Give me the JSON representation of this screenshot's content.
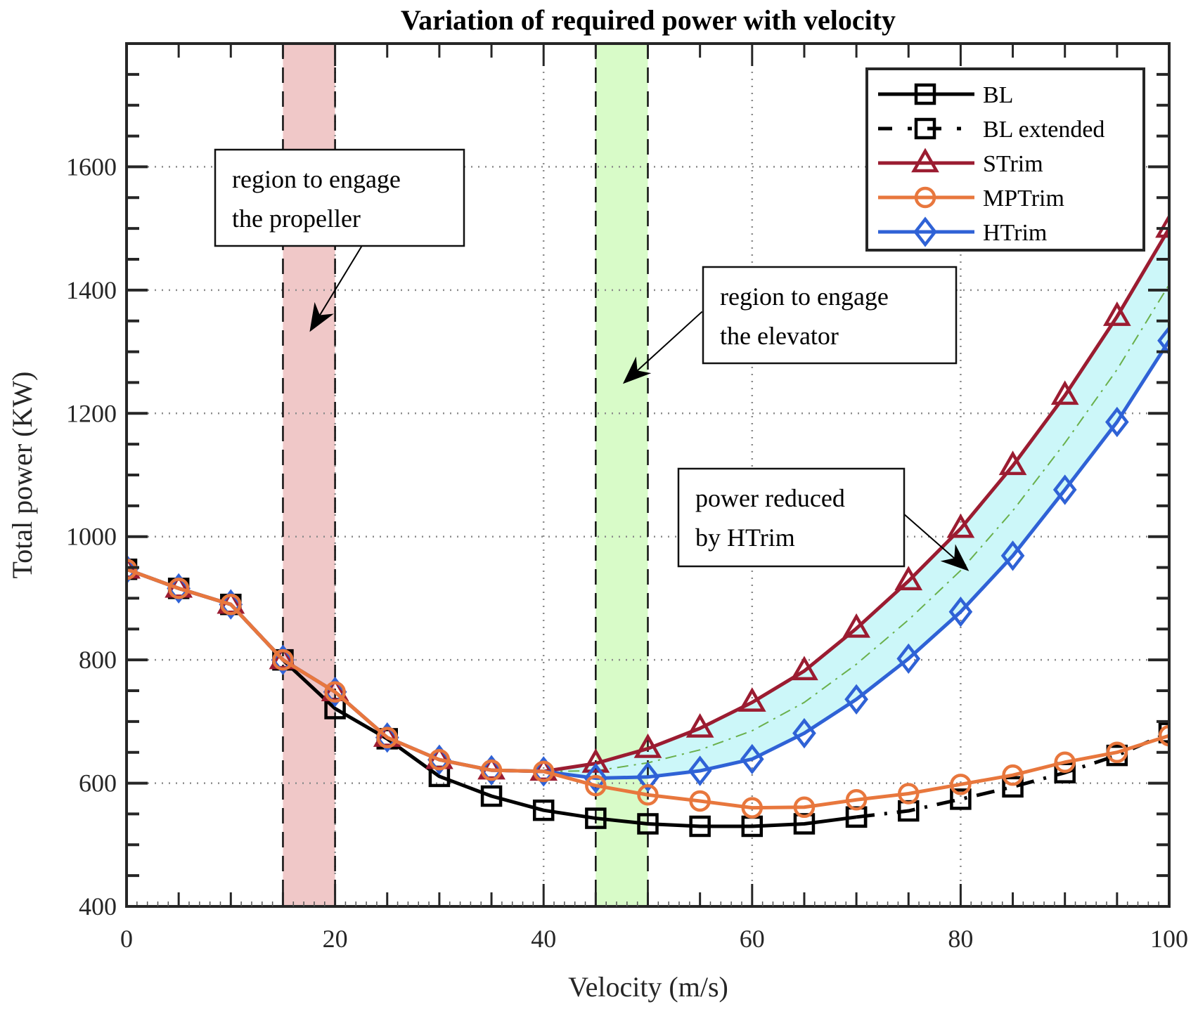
{
  "chart_data": {
    "type": "line",
    "title": "Variation of required power with velocity",
    "xlabel": "Velocity (m/s)",
    "ylabel": "Total power (KW)",
    "xlim": [
      0,
      100
    ],
    "ylim": [
      400,
      1800
    ],
    "x_ticks": [
      0,
      20,
      40,
      60,
      80,
      100
    ],
    "x_tick_labels": [
      "0",
      "20",
      "40",
      "60",
      "80",
      "100"
    ],
    "y_ticks": [
      400,
      600,
      800,
      1000,
      1200,
      1400,
      1600
    ],
    "y_tick_labels": [
      "400",
      "600",
      "800",
      "1000",
      "1200",
      "1400",
      "1600"
    ],
    "x_minor_step": 5,
    "y_minor_step": 50,
    "grid": true,
    "legend_position": "top-right",
    "series": [
      {
        "name": "BL",
        "color": "#000000",
        "marker": "square",
        "line_style": "solid",
        "x": [
          0,
          5,
          10,
          15,
          20,
          25,
          30,
          35,
          40,
          45,
          50,
          55,
          60,
          65,
          70
        ],
        "values": [
          947,
          916,
          890,
          800,
          721,
          672,
          611,
          579,
          556,
          543,
          534,
          530,
          530,
          534,
          545
        ]
      },
      {
        "name": "BL extended",
        "color": "#000000",
        "marker": "square",
        "line_style": "dash-dot",
        "x": [
          70,
          75,
          80,
          85,
          90,
          95,
          100
        ],
        "values": [
          545,
          555,
          574,
          594,
          617,
          645,
          682
        ]
      },
      {
        "name": "STrim",
        "color": "#9b1c31",
        "marker": "triangle",
        "line_style": "solid",
        "x": [
          0,
          5,
          10,
          15,
          20,
          25,
          30,
          35,
          40,
          45,
          50,
          55,
          60,
          65,
          70,
          75,
          80,
          85,
          90,
          95,
          100
        ],
        "values": [
          947,
          916,
          890,
          800,
          748,
          674,
          638,
          621,
          619,
          632,
          656,
          689,
          731,
          782,
          851,
          928,
          1013,
          1115,
          1229,
          1357,
          1500
        ]
      },
      {
        "name": "MPTrim",
        "color": "#e8773d",
        "marker": "circle",
        "line_style": "solid",
        "x": [
          0,
          5,
          10,
          15,
          20,
          25,
          30,
          35,
          40,
          45,
          50,
          55,
          60,
          65,
          70,
          75,
          80,
          85,
          90,
          95,
          100
        ],
        "values": [
          947,
          916,
          890,
          800,
          748,
          674,
          638,
          621,
          619,
          596,
          581,
          571,
          560,
          561,
          573,
          583,
          598,
          613,
          634,
          650,
          677
        ]
      },
      {
        "name": "HTrim",
        "color": "#2f62d6",
        "marker": "diamond",
        "line_style": "solid",
        "x": [
          0,
          5,
          10,
          15,
          20,
          25,
          30,
          35,
          40,
          45,
          50,
          55,
          60,
          65,
          70,
          75,
          80,
          85,
          90,
          95,
          100
        ],
        "values": [
          947,
          916,
          890,
          800,
          748,
          674,
          638,
          621,
          619,
          608,
          610,
          620,
          639,
          681,
          736,
          802,
          878,
          969,
          1076,
          1186,
          1318
        ]
      }
    ],
    "reference_line": {
      "name": "mean of STrim and HTrim",
      "color": "#6ab04c",
      "line_style": "dash-dot",
      "x": [
        40,
        45,
        50,
        55,
        60,
        65,
        70,
        75,
        80,
        85,
        90,
        95,
        100
      ],
      "values": [
        619,
        620,
        633,
        654,
        685,
        731,
        793,
        865,
        945,
        1042,
        1152,
        1271,
        1409
      ]
    },
    "fill_between": {
      "upper": "STrim",
      "lower": "HTrim",
      "x_from": 40,
      "x_to": 100,
      "color": "#ccf7f9"
    },
    "shaded_regions": [
      {
        "name": "propeller-region",
        "x_from": 15,
        "x_to": 20,
        "color": "#f0c8c8"
      },
      {
        "name": "elevator-region",
        "x_from": 45,
        "x_to": 50,
        "color": "#d8fbc8"
      }
    ],
    "annotations": [
      {
        "name": "propeller-annotation",
        "lines": [
          "region to engage",
          "the propeller"
        ],
        "arrow_to": [
          17.7,
          1336
        ],
        "arrow_from": [
          23.3,
          1492
        ]
      },
      {
        "name": "elevator-annotation",
        "lines": [
          "region to engage",
          "the elevator"
        ],
        "arrow_to": [
          47.8,
          1251
        ],
        "arrow_from": [
          55.2,
          1365
        ]
      },
      {
        "name": "htrim-annotation",
        "lines": [
          "power reduced",
          "by HTrim"
        ],
        "arrow_to": [
          80.6,
          947
        ],
        "arrow_from": [
          74.6,
          1036
        ]
      }
    ]
  }
}
